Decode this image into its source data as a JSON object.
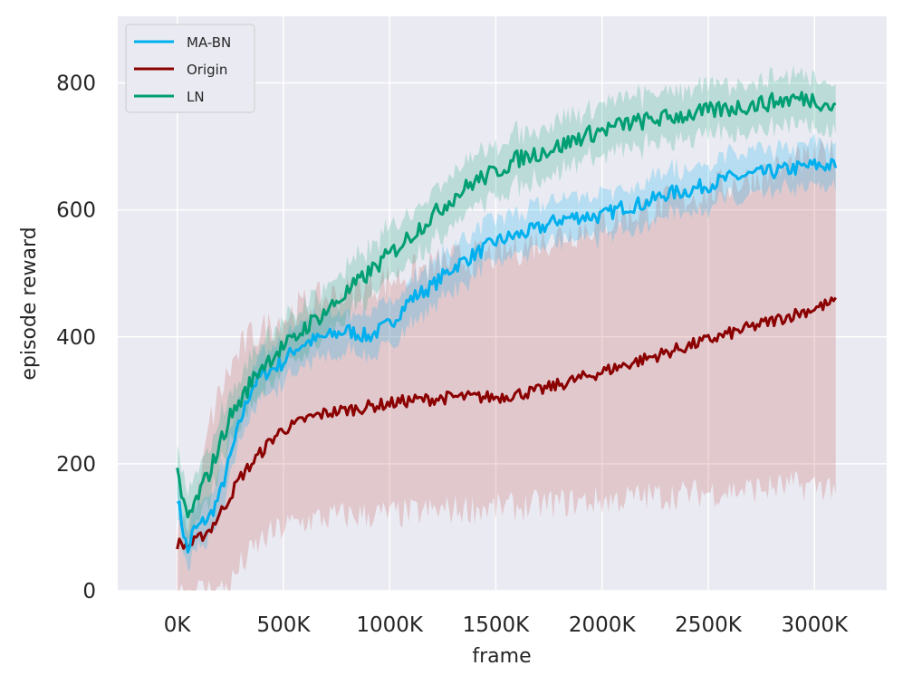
{
  "chart_data": {
    "type": "line",
    "title": "",
    "xlabel": "frame",
    "ylabel": "episode reward",
    "xlim": [
      -280,
      3340
    ],
    "ylim": [
      0,
      905
    ],
    "x_ticks": [
      0,
      500,
      1000,
      1500,
      2000,
      2500,
      3000
    ],
    "x_tick_labels": [
      "0K",
      "500K",
      "1000K",
      "1500K",
      "2000K",
      "2500K",
      "3000K"
    ],
    "y_ticks": [
      0,
      200,
      400,
      600,
      800
    ],
    "y_tick_labels": [
      "0",
      "200",
      "400",
      "600",
      "800"
    ],
    "grid": true,
    "legend_position": "upper-left",
    "x_unit": "K frames",
    "series": [
      {
        "name": "MA-BN",
        "color": "#00B0EE",
        "x": [
          0,
          25,
          50,
          75,
          100,
          125,
          150,
          200,
          250,
          300,
          350,
          400,
          450,
          500,
          550,
          600,
          700,
          800,
          900,
          1000,
          1100,
          1200,
          1300,
          1400,
          1500,
          1600,
          1700,
          1800,
          1900,
          2000,
          2100,
          2200,
          2300,
          2400,
          2500,
          2600,
          2700,
          2800,
          2900,
          3000,
          3100
        ],
        "y": [
          150,
          100,
          60,
          95,
          100,
          110,
          115,
          150,
          210,
          270,
          320,
          340,
          350,
          360,
          380,
          390,
          400,
          410,
          400,
          420,
          460,
          480,
          510,
          530,
          550,
          560,
          570,
          585,
          590,
          590,
          605,
          610,
          625,
          630,
          640,
          650,
          655,
          660,
          665,
          670,
          670
        ],
        "band": [
          30,
          30,
          30,
          30,
          30,
          30,
          30,
          30,
          30,
          30,
          30,
          30,
          30,
          30,
          30,
          30,
          30,
          30,
          30,
          30,
          30,
          30,
          30,
          30,
          30,
          30,
          30,
          30,
          30,
          30,
          30,
          30,
          30,
          30,
          30,
          30,
          30,
          30,
          30,
          30,
          30
        ]
      },
      {
        "name": "Origin",
        "color": "#8B0000",
        "x": [
          0,
          25,
          50,
          75,
          100,
          125,
          150,
          200,
          250,
          300,
          350,
          400,
          450,
          500,
          550,
          600,
          700,
          800,
          900,
          1000,
          1100,
          1200,
          1300,
          1400,
          1500,
          1600,
          1700,
          1800,
          1900,
          2000,
          2100,
          2200,
          2300,
          2400,
          2500,
          2600,
          2700,
          2800,
          2900,
          3000,
          3100
        ],
        "y": [
          75,
          72,
          70,
          75,
          80,
          90,
          95,
          120,
          150,
          180,
          200,
          220,
          240,
          255,
          260,
          270,
          280,
          285,
          290,
          295,
          300,
          302,
          305,
          305,
          305,
          310,
          315,
          325,
          335,
          345,
          355,
          365,
          375,
          385,
          395,
          405,
          415,
          425,
          435,
          445,
          455
        ],
        "band_upper": [
          100,
          100,
          110,
          130,
          150,
          200,
          260,
          310,
          350,
          380,
          400,
          410,
          420,
          430,
          440,
          450,
          460,
          470,
          480,
          490,
          500,
          510,
          520,
          525,
          530,
          540,
          550,
          560,
          570,
          580,
          590,
          600,
          610,
          620,
          630,
          640,
          650,
          660,
          670,
          680,
          690
        ],
        "band_lower": [
          0,
          0,
          0,
          0,
          0,
          0,
          0,
          0,
          10,
          40,
          60,
          80,
          90,
          100,
          105,
          110,
          115,
          118,
          120,
          120,
          122,
          125,
          128,
          130,
          130,
          132,
          135,
          138,
          140,
          142,
          145,
          148,
          150,
          152,
          155,
          158,
          160,
          162,
          165,
          165,
          165
        ]
      },
      {
        "name": "LN",
        "color": "#009E73",
        "x": [
          0,
          25,
          50,
          75,
          100,
          125,
          150,
          200,
          250,
          300,
          350,
          400,
          450,
          500,
          550,
          600,
          700,
          800,
          900,
          1000,
          1100,
          1200,
          1300,
          1400,
          1500,
          1600,
          1700,
          1800,
          1900,
          2000,
          2100,
          2200,
          2300,
          2400,
          2500,
          2600,
          2700,
          2800,
          2900,
          3000,
          3100
        ],
        "y": [
          180,
          140,
          115,
          130,
          150,
          170,
          185,
          230,
          275,
          300,
          330,
          355,
          370,
          385,
          395,
          415,
          440,
          470,
          500,
          530,
          560,
          590,
          620,
          645,
          660,
          680,
          690,
          700,
          715,
          725,
          735,
          740,
          745,
          750,
          755,
          760,
          765,
          770,
          775,
          775,
          760
        ],
        "band": [
          35,
          35,
          35,
          35,
          35,
          35,
          35,
          35,
          35,
          35,
          35,
          35,
          35,
          35,
          35,
          35,
          35,
          35,
          35,
          35,
          35,
          35,
          35,
          35,
          35,
          35,
          35,
          35,
          35,
          35,
          35,
          35,
          35,
          35,
          35,
          35,
          35,
          35,
          35,
          35,
          35
        ]
      }
    ]
  }
}
